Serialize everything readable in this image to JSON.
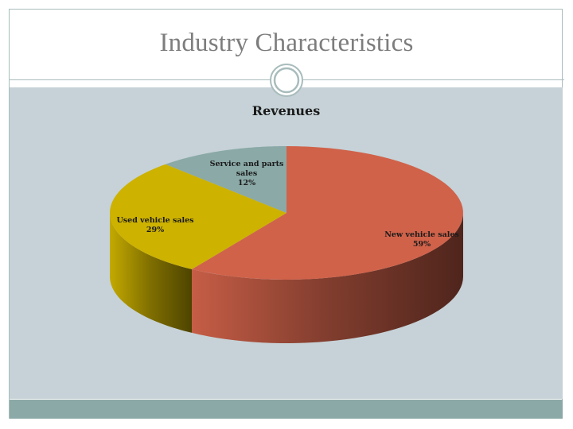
{
  "slide": {
    "title": "Industry Characteristics",
    "colors": {
      "content_bg": "#c6d2d7",
      "footer": "#8aa9a7",
      "frame": "#a9bcbc",
      "title_text": "#7d7d7d"
    }
  },
  "chart_data": {
    "type": "pie",
    "title": "Revenues",
    "style": "3d-exploded-perspective",
    "start_angle_deg": 0,
    "direction": "clockwise-from-top",
    "slices": [
      {
        "name": "New vehicle sales",
        "value": 59,
        "label": "59%",
        "color": "#d0624a"
      },
      {
        "name": "Used vehicle sales",
        "value": 29,
        "label": "29%",
        "color": "#cdb200"
      },
      {
        "name": "Service and parts sales",
        "value": 12,
        "label": "12%",
        "color": "#8aa9a7"
      }
    ],
    "legend": "none",
    "data_labels": "on-slice"
  }
}
